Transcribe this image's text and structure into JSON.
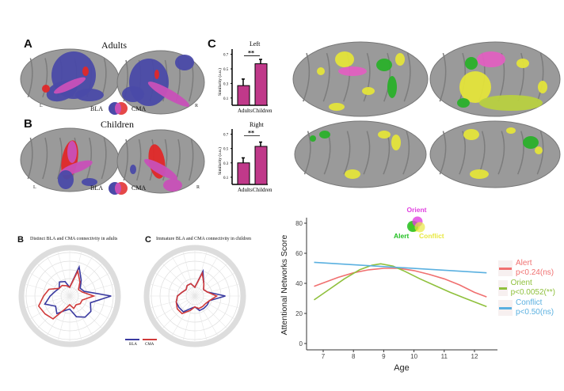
{
  "figure_a": {
    "panel": "A",
    "title": "Adults",
    "left": "L",
    "right": "R",
    "legend_bla": "BLA",
    "legend_cma": "CMA"
  },
  "figure_b": {
    "panel": "B",
    "title": "Children",
    "left": "L",
    "right": "R",
    "legend_bla": "BLA",
    "legend_cma": "CMA"
  },
  "figure_c_label": "C",
  "chart_data": [
    {
      "type": "bar",
      "title": "Left",
      "ylabel": "Similarity (a.u.)",
      "categories": [
        "Adults",
        "Children"
      ],
      "values": [
        0.27,
        0.57
      ],
      "errors": [
        0.09,
        0.06
      ],
      "yticks": [
        "0.1",
        "0.3",
        "0.5",
        "0.7"
      ],
      "ylim": [
        0,
        0.7
      ],
      "significance": "**",
      "color": "#c0398a"
    },
    {
      "type": "bar",
      "title": "Right",
      "ylabel": "Similarity (a.u.)",
      "categories": [
        "Adults",
        "Children"
      ],
      "values": [
        0.3,
        0.53
      ],
      "errors": [
        0.07,
        0.06
      ],
      "yticks": [
        "0.1",
        "0.3",
        "0.5",
        "0.7"
      ],
      "ylim": [
        0,
        0.7
      ],
      "significance": "**",
      "color": "#c0398a"
    },
    {
      "type": "line",
      "xlabel": "Age",
      "ylabel": "Attentional Networks Score",
      "xticks": [
        "7",
        "8",
        "9",
        "10",
        "11",
        "12"
      ],
      "yticks": [
        "0",
        "20",
        "40",
        "60",
        "80"
      ],
      "xlim": [
        6.7,
        12.4
      ],
      "ylim": [
        0,
        80
      ],
      "grid": false,
      "legend_placement": "right",
      "series": [
        {
          "name": "Alert",
          "stat": "p<0.24(ns)",
          "color": "#f07070",
          "x": [
            6.7,
            7.5,
            8,
            8.5,
            9,
            9.5,
            10,
            10.5,
            11,
            11.5,
            12,
            12.4
          ],
          "y": [
            38,
            44,
            47,
            49,
            50,
            50,
            48.5,
            46,
            43,
            39,
            34,
            31
          ]
        },
        {
          "name": "Orient",
          "stat": "p<0.0052(**)",
          "color": "#8fc03c",
          "x": [
            6.7,
            7.2,
            7.7,
            8.2,
            8.6,
            8.9,
            9.3,
            9.7,
            10.2,
            10.7,
            11.2,
            11.7,
            12.4
          ],
          "y": [
            29,
            36,
            43,
            49,
            52,
            53,
            51.5,
            48,
            43,
            38.5,
            34,
            30,
            24.5
          ]
        },
        {
          "name": "Conflict",
          "stat": "p<0.50(ns)",
          "color": "#5ab0e0",
          "x": [
            6.7,
            12.4
          ],
          "y": [
            54,
            47
          ]
        }
      ],
      "venn": {
        "top": "Orient",
        "left": "Alert",
        "right": "Conflict",
        "colors": {
          "orient": "#e040e0",
          "alert": "#22c022",
          "conflict": "#e8e840"
        }
      }
    }
  ],
  "radar_b": {
    "panel": "B",
    "title": "Distinct BLA and CMA connectivity in adults"
  },
  "radar_c": {
    "panel": "C",
    "title": "Immature BLA and CMA connectivity in children"
  },
  "radar_legend": {
    "bla": "BLA",
    "cma": "CMA",
    "bla_color": "#3a3aa0",
    "cma_color": "#d03a3a"
  }
}
